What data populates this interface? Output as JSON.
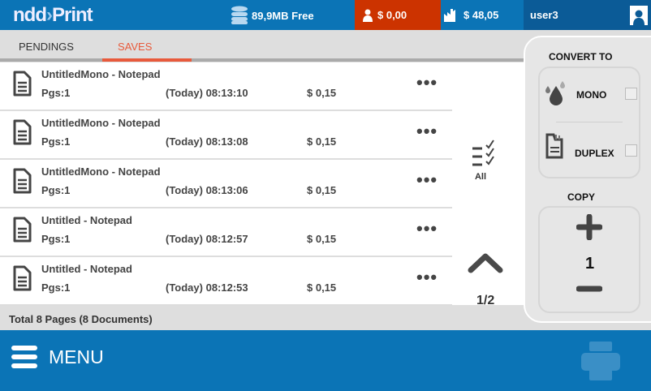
{
  "header": {
    "logo": "ndd Print",
    "storage": "89,9MB Free",
    "balance": "$ 0,00",
    "company_balance": "$ 48,05",
    "user": "user3"
  },
  "tabs": [
    {
      "label": "PENDINGS",
      "active": false
    },
    {
      "label": "SAVES",
      "active": true
    }
  ],
  "documents": [
    {
      "title": "UntitledMono - Notepad",
      "pages": "Pgs:1",
      "date": "(Today) 08:13:10",
      "cost": "$ 0,15"
    },
    {
      "title": "UntitledMono - Notepad",
      "pages": "Pgs:1",
      "date": "(Today) 08:13:08",
      "cost": "$ 0,15"
    },
    {
      "title": "UntitledMono - Notepad",
      "pages": "Pgs:1",
      "date": "(Today) 08:13:06",
      "cost": "$ 0,15"
    },
    {
      "title": "Untitled - Notepad",
      "pages": "Pgs:1",
      "date": "(Today) 08:12:57",
      "cost": "$ 0,15"
    },
    {
      "title": "Untitled - Notepad",
      "pages": "Pgs:1",
      "date": "(Today) 08:12:53",
      "cost": "$ 0,15"
    }
  ],
  "select_all": "All",
  "page_indicator": "1/2",
  "total": "Total 8 Pages (8 Documents)",
  "panel": {
    "convert_to": "CONVERT TO",
    "mono": "MONO",
    "mono_checked": false,
    "duplex": "DUPLEX",
    "duplex_checked": false,
    "copy": "COPY",
    "copies": "1"
  },
  "menu": "MENU",
  "colors": {
    "primary": "#0b74b6",
    "accent": "#e85a3c",
    "balance": "#cc3300"
  }
}
